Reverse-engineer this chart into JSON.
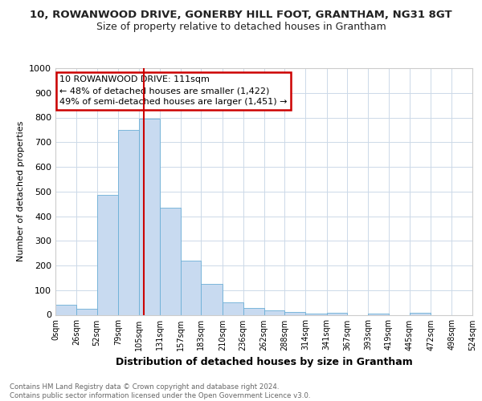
{
  "title_line1": "10, ROWANWOOD DRIVE, GONERBY HILL FOOT, GRANTHAM, NG31 8GT",
  "title_line2": "Size of property relative to detached houses in Grantham",
  "xlabel": "Distribution of detached houses by size in Grantham",
  "ylabel": "Number of detached properties",
  "bar_edges": [
    0,
    26,
    52,
    79,
    105,
    131,
    157,
    183,
    210,
    236,
    262,
    288,
    314,
    341,
    367,
    393,
    419,
    445,
    472,
    498,
    524
  ],
  "bar_heights": [
    40,
    25,
    485,
    748,
    795,
    435,
    220,
    125,
    50,
    28,
    18,
    10,
    5,
    8,
    0,
    5,
    0,
    8,
    0,
    0
  ],
  "bar_color": "#c8daf0",
  "bar_edge_color": "#6baed6",
  "property_line_x": 111,
  "annotation_text": "10 ROWANWOOD DRIVE: 111sqm\n← 48% of detached houses are smaller (1,422)\n49% of semi-detached houses are larger (1,451) →",
  "annotation_box_color": "#ffffff",
  "annotation_box_edge": "#cc0000",
  "vline_color": "#cc0000",
  "ylim": [
    0,
    1000
  ],
  "yticks": [
    0,
    100,
    200,
    300,
    400,
    500,
    600,
    700,
    800,
    900,
    1000
  ],
  "xtick_labels": [
    "0sqm",
    "26sqm",
    "52sqm",
    "79sqm",
    "105sqm",
    "131sqm",
    "157sqm",
    "183sqm",
    "210sqm",
    "236sqm",
    "262sqm",
    "288sqm",
    "314sqm",
    "341sqm",
    "367sqm",
    "393sqm",
    "419sqm",
    "445sqm",
    "472sqm",
    "498sqm",
    "524sqm"
  ],
  "footer_text": "Contains HM Land Registry data © Crown copyright and database right 2024.\nContains public sector information licensed under the Open Government Licence v3.0.",
  "bg_color": "#ffffff",
  "grid_color": "#ccd9e8",
  "title1_fontsize": 9.5,
  "title2_fontsize": 9
}
